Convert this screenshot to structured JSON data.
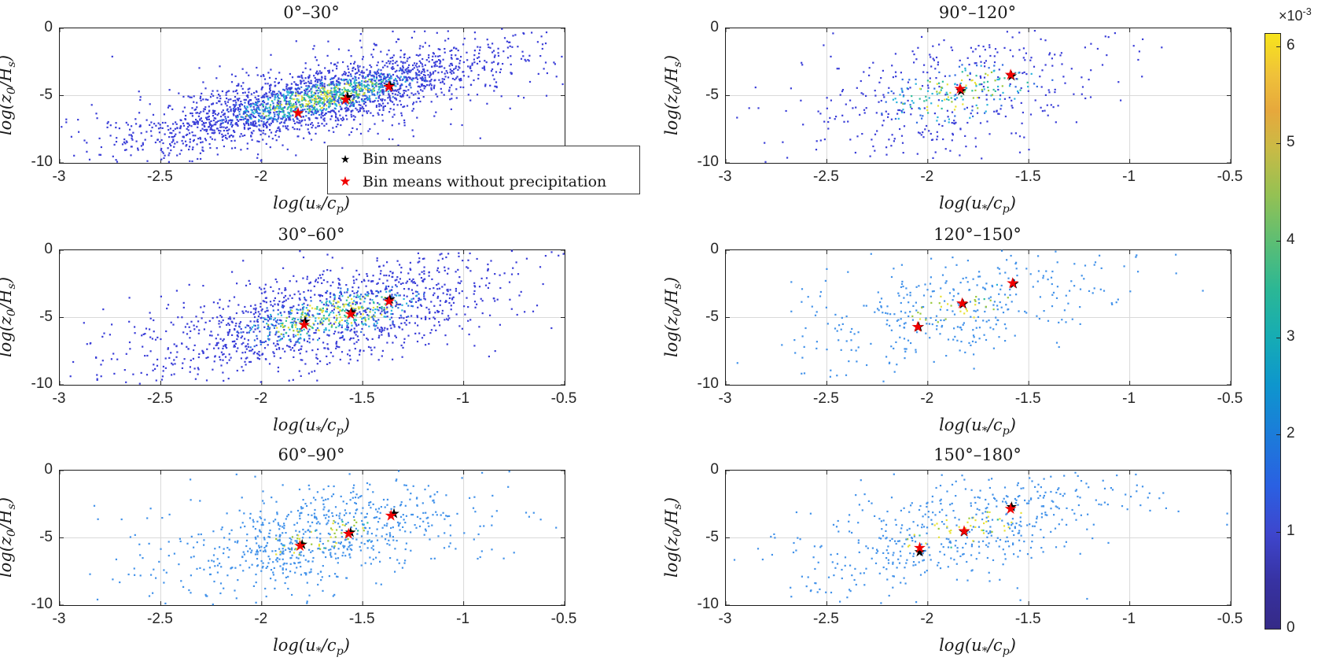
{
  "chart_data": {
    "type": "scatter",
    "figure_kind": "binned density scatter, 6 subplots by wave direction sector",
    "xlabel": "log(u_*/c_p)",
    "ylabel": "log(z_0/H_s)",
    "xlim": [
      -3,
      -0.5
    ],
    "ylim": [
      -10,
      0
    ],
    "xticks": [
      -3,
      -2.5,
      -2,
      -1.5,
      -1,
      -0.5
    ],
    "xtick_labels": [
      "-3",
      "-2.5",
      "-2",
      "-1.5",
      "-1",
      "-0.5"
    ],
    "yticks": [
      0,
      -5,
      -10
    ],
    "ytick_labels": [
      "0",
      "-5",
      "-10"
    ],
    "grid": "on",
    "legend": [
      {
        "marker": "pentagram",
        "color": "#000000",
        "label": "Bin means"
      },
      {
        "marker": "pentagram",
        "color": "#f00000",
        "label": "Bin means without precipitation"
      }
    ],
    "colorbar": {
      "exponent_label": "×10⁻³",
      "ticks": [
        0,
        1,
        2,
        3,
        4,
        5,
        6
      ],
      "value_max": 6.13,
      "colormap": "parula",
      "gradient_stops": [
        {
          "pos": 0.0,
          "color": "#352a87"
        },
        {
          "pos": 0.08,
          "color": "#3732a2"
        },
        {
          "pos": 0.16,
          "color": "#3e46cd"
        },
        {
          "pos": 0.24,
          "color": "#2a60e2"
        },
        {
          "pos": 0.33,
          "color": "#1b7dd9"
        },
        {
          "pos": 0.41,
          "color": "#0e96cd"
        },
        {
          "pos": 0.49,
          "color": "#16acb4"
        },
        {
          "pos": 0.57,
          "color": "#2bb795"
        },
        {
          "pos": 0.65,
          "color": "#5cbe74"
        },
        {
          "pos": 0.73,
          "color": "#95c153"
        },
        {
          "pos": 0.81,
          "color": "#cbba45"
        },
        {
          "pos": 0.87,
          "color": "#e6a83c"
        },
        {
          "pos": 0.93,
          "color": "#efc13a"
        },
        {
          "pos": 1.0,
          "color": "#f7e41c"
        }
      ]
    },
    "point_colors": {
      "dense_base": "#3a3ed8",
      "mid_blue": "#2f6ce2",
      "light_base": "#4292ea",
      "cyan": "#29b3dc",
      "teal": "#2fbf9b",
      "green": "#9ac93d",
      "yellow": "#e8e234"
    },
    "marker_colors": {
      "bin_means": "#000000",
      "bin_means_no_precip": "#f00000"
    },
    "panels": [
      {
        "title": "0°–30°",
        "grid_pos": {
          "row": 0,
          "col": 0
        },
        "style": "dense-blue",
        "n_points": 2600,
        "seed": 101,
        "cloud": {
          "cx": -1.7,
          "cy": -5.15,
          "sx": 0.38,
          "sy": 1.55,
          "rho": 0.78,
          "halo_frac": 0.26,
          "halo_gain": 1.9
        },
        "outliers": [
          [
            -2.68,
            -8.25
          ],
          [
            -2.62,
            -8.4
          ],
          [
            -2.74,
            -2.1
          ]
        ],
        "bin_means": [
          [
            -1.575,
            -5.1
          ],
          [
            -1.365,
            -4.25
          ]
        ],
        "bin_means_no_precip": [
          [
            -1.82,
            -6.3
          ],
          [
            -1.585,
            -5.3
          ],
          [
            -1.37,
            -4.35
          ]
        ]
      },
      {
        "title": "30°–60°",
        "grid_pos": {
          "row": 1,
          "col": 0
        },
        "style": "dense-blue",
        "n_points": 1500,
        "seed": 202,
        "cloud": {
          "cx": -1.65,
          "cy": -4.85,
          "sx": 0.37,
          "sy": 1.75,
          "rho": 0.6,
          "halo_frac": 0.3,
          "halo_gain": 1.8
        },
        "outliers": [
          [
            -2.88,
            -5.4
          ],
          [
            -2.55,
            -7.5
          ],
          [
            -0.88,
            -1.05
          ]
        ],
        "bin_means": [
          [
            -1.785,
            -5.3
          ],
          [
            -1.555,
            -4.6
          ],
          [
            -1.365,
            -3.65
          ]
        ],
        "bin_means_no_precip": [
          [
            -1.79,
            -5.55
          ],
          [
            -1.56,
            -4.75
          ],
          [
            -1.37,
            -3.8
          ]
        ]
      },
      {
        "title": "60°–90°",
        "grid_pos": {
          "row": 2,
          "col": 0
        },
        "style": "sparse-light",
        "n_points": 760,
        "seed": 303,
        "cloud": {
          "cx": -1.7,
          "cy": -4.9,
          "sx": 0.34,
          "sy": 1.85,
          "rho": 0.5,
          "halo_frac": 0.3,
          "halo_gain": 1.6
        },
        "outliers": [
          [
            -2.85,
            -7.7
          ],
          [
            -2.6,
            -7.8
          ],
          [
            -2.72,
            -6.6
          ]
        ],
        "bin_means": [
          [
            -1.8,
            -5.5
          ],
          [
            -1.56,
            -4.6
          ],
          [
            -1.345,
            -3.2
          ]
        ],
        "bin_means_no_precip": [
          [
            -1.81,
            -5.6
          ],
          [
            -1.57,
            -4.7
          ],
          [
            -1.36,
            -3.35
          ]
        ]
      },
      {
        "title": "90°–120°",
        "grid_pos": {
          "row": 0,
          "col": 1
        },
        "style": "dense-blue",
        "n_points": 520,
        "seed": 404,
        "cloud": {
          "cx": -1.82,
          "cy": -4.7,
          "sx": 0.33,
          "sy": 2.0,
          "rho": 0.45,
          "halo_frac": 0.3,
          "halo_gain": 1.5
        },
        "outliers": [
          [
            -0.98,
            -1.3
          ],
          [
            -2.48,
            -2.1
          ],
          [
            -1.12,
            -0.6
          ]
        ],
        "bin_means": [
          [
            -1.835,
            -4.65
          ],
          [
            -1.585,
            -3.55
          ]
        ],
        "bin_means_no_precip": [
          [
            -1.84,
            -4.5
          ],
          [
            -1.59,
            -3.45
          ]
        ]
      },
      {
        "title": "120°–150°",
        "grid_pos": {
          "row": 1,
          "col": 1
        },
        "style": "sparse-light",
        "n_points": 380,
        "seed": 505,
        "cloud": {
          "cx": -1.85,
          "cy": -4.2,
          "sx": 0.36,
          "sy": 2.0,
          "rho": 0.55,
          "halo_frac": 0.3,
          "halo_gain": 1.5
        },
        "outliers": [
          [
            -2.5,
            -1.4
          ],
          [
            -2.62,
            -6.4
          ],
          [
            -1.15,
            -0.4
          ]
        ],
        "bin_means": [
          [
            -2.045,
            -5.7
          ],
          [
            -1.825,
            -4.0
          ],
          [
            -1.575,
            -2.5
          ]
        ],
        "bin_means_no_precip": [
          [
            -2.05,
            -5.7
          ],
          [
            -1.83,
            -3.95
          ],
          [
            -1.58,
            -2.45
          ]
        ]
      },
      {
        "title": "150°–180°",
        "grid_pos": {
          "row": 2,
          "col": 1
        },
        "style": "sparse-light-green",
        "n_points": 540,
        "seed": 606,
        "cloud": {
          "cx": -1.82,
          "cy": -4.3,
          "sx": 0.37,
          "sy": 2.0,
          "rho": 0.6,
          "halo_frac": 0.28,
          "halo_gain": 1.6
        },
        "outliers": [
          [
            -2.65,
            -3.1
          ],
          [
            -2.58,
            -3.2
          ],
          [
            -2.68,
            -8.7
          ],
          [
            -2.6,
            -8.6
          ]
        ],
        "bin_means": [
          [
            -2.04,
            -6.05
          ],
          [
            -1.82,
            -4.55
          ],
          [
            -1.585,
            -2.7
          ]
        ],
        "bin_means_no_precip": [
          [
            -2.04,
            -5.75
          ],
          [
            -1.82,
            -4.5
          ],
          [
            -1.59,
            -2.85
          ]
        ]
      }
    ]
  }
}
